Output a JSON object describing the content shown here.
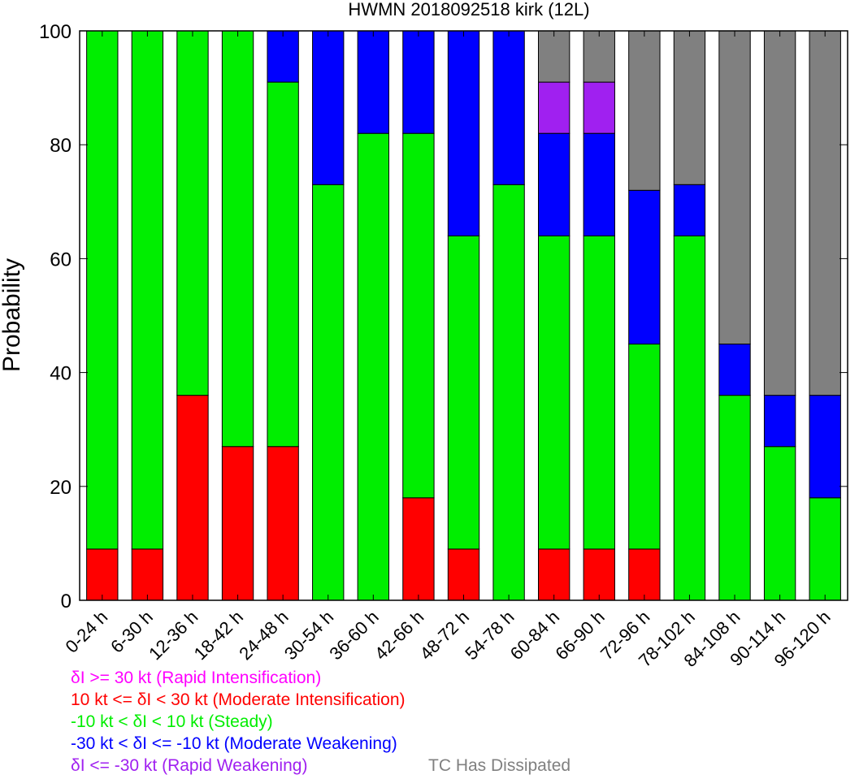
{
  "chart_data": {
    "type": "bar",
    "stacked": true,
    "title": "HWMN 2018092518 kirk (12L)",
    "ylabel": "Probability",
    "xlabel": "",
    "ylim": [
      0,
      100
    ],
    "yticks": [
      0,
      20,
      40,
      60,
      80,
      100
    ],
    "grid": false,
    "categories": [
      "0-24 h",
      "6-30 h",
      "12-36 h",
      "18-42 h",
      "24-48 h",
      "30-54 h",
      "36-60 h",
      "42-66 h",
      "48-72 h",
      "54-78 h",
      "60-84 h",
      "66-90 h",
      "72-96 h",
      "78-102 h",
      "84-108 h",
      "90-114 h",
      "96-120 h"
    ],
    "series": [
      {
        "name": "10 kt <= δI < 30 kt (Moderate Intensification)",
        "color": "#ff0000",
        "values": [
          9,
          9,
          36,
          27,
          27,
          0,
          0,
          18,
          9,
          0,
          9,
          9,
          9,
          0,
          0,
          0,
          0
        ]
      },
      {
        "name": "-10 kt < δI < 10 kt (Steady)",
        "color": "#00ee00",
        "values": [
          91,
          91,
          64,
          73,
          64,
          73,
          82,
          64,
          55,
          73,
          55,
          55,
          36,
          64,
          36,
          27,
          18
        ]
      },
      {
        "name": "-30 kt < δI <= -10 kt (Moderate Weakening)",
        "color": "#0000ff",
        "values": [
          0,
          0,
          0,
          0,
          9,
          27,
          18,
          18,
          36,
          27,
          18,
          18,
          27,
          9,
          9,
          9,
          18
        ]
      },
      {
        "name": "δI <= -30 kt (Rapid Weakening)",
        "color": "#a020f0",
        "values": [
          0,
          0,
          0,
          0,
          0,
          0,
          0,
          0,
          0,
          0,
          9,
          9,
          0,
          0,
          0,
          0,
          0
        ]
      },
      {
        "name": "TC Has Dissipated",
        "color": "#808080",
        "values": [
          0,
          0,
          0,
          0,
          0,
          0,
          0,
          0,
          0,
          0,
          9,
          9,
          28,
          27,
          55,
          64,
          64
        ]
      }
    ]
  },
  "legend": {
    "rapid_intensification": {
      "label": "δI >= 30 kt (Rapid Intensification)",
      "color": "#ff00ff"
    },
    "moderate_intensification": {
      "label": "10 kt <= δI < 30 kt (Moderate Intensification)",
      "color": "#ff0000"
    },
    "steady": {
      "label": "-10 kt < δI < 10 kt (Steady)",
      "color": "#00ee00"
    },
    "moderate_weakening": {
      "label": "-30 kt < δI <= -10 kt (Moderate Weakening)",
      "color": "#0000ff"
    },
    "rapid_weakening": {
      "label": "δI <= -30 kt (Rapid Weakening)",
      "color": "#a020f0"
    },
    "dissipated": {
      "label": "TC Has Dissipated",
      "color": "#808080"
    }
  }
}
